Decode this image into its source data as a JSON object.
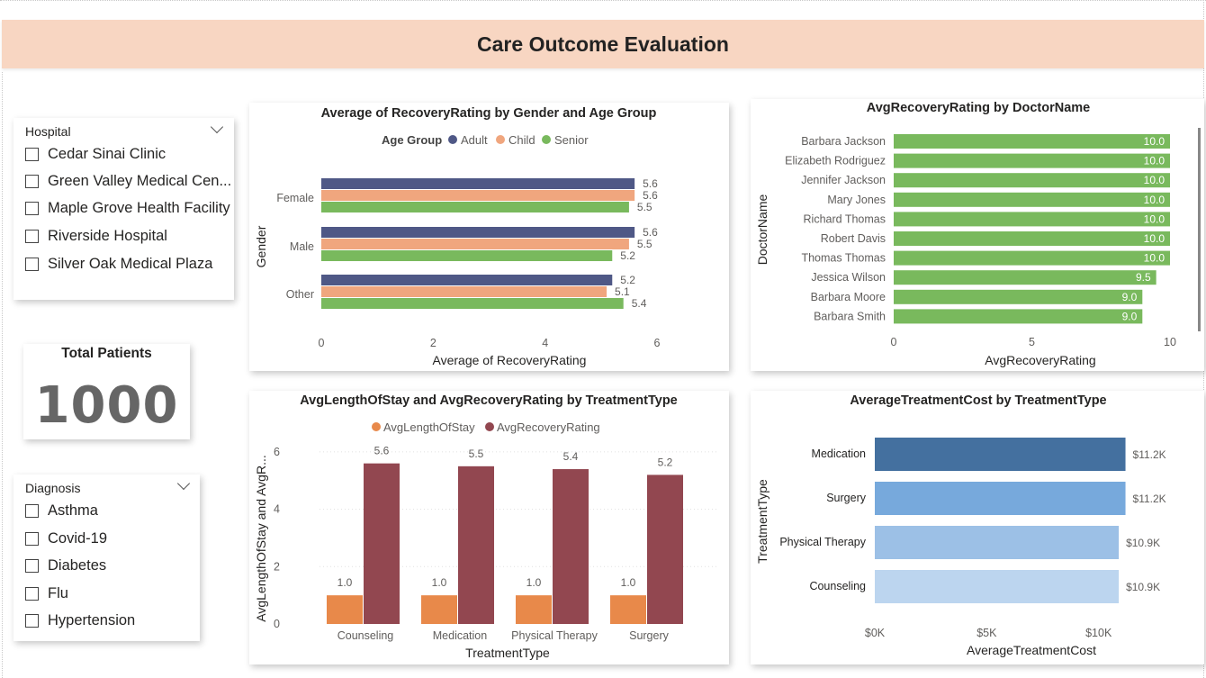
{
  "report": {
    "title": "Care Outcome Evaluation"
  },
  "slicers": {
    "hospital": {
      "label": "Hospital",
      "items": [
        "Cedar Sinai Clinic",
        "Green Valley Medical Cen...",
        "Maple Grove Health Facility",
        "Riverside Hospital",
        "Silver Oak Medical Plaza"
      ]
    },
    "diagnosis": {
      "label": "Diagnosis",
      "items": [
        "Asthma",
        "Covid-19",
        "Diabetes",
        "Flu",
        "Hypertension"
      ]
    }
  },
  "kpi": {
    "label": "Total Patients",
    "value": "1000"
  },
  "colors": {
    "adult": "#4f5886",
    "child": "#f0a67e",
    "senior": "#79b95d",
    "doctor_bar": "#79b95d",
    "length_of_stay": "#e8894a",
    "recovery": "#924750",
    "cost_medication": "#44709f",
    "cost_surgery": "#77a9dc",
    "cost_physical_therapy": "#9cc0e6",
    "cost_counseling": "#bcd5ef"
  },
  "chart_data": [
    {
      "id": "gender_age",
      "type": "bar",
      "orientation": "horizontal",
      "title": "Average of RecoveryRating by Gender and Age Group",
      "xlabel": "Average of RecoveryRating",
      "ylabel": "Gender",
      "legend_title": "Age Group",
      "legend_position": "top",
      "categories": [
        "Female",
        "Male",
        "Other"
      ],
      "series": [
        {
          "name": "Adult",
          "values": [
            5.6,
            5.6,
            5.2
          ],
          "labels": [
            "5.6",
            "5.6",
            "5.2"
          ]
        },
        {
          "name": "Child",
          "values": [
            5.6,
            5.5,
            5.1
          ],
          "labels": [
            "5.6",
            "5.5",
            "5.1"
          ]
        },
        {
          "name": "Senior",
          "values": [
            5.5,
            5.2,
            5.4
          ],
          "labels": [
            "5.5",
            "5.2",
            "5.4"
          ]
        }
      ],
      "xlim": [
        0,
        6
      ],
      "xticks": [
        "0",
        "2",
        "4",
        "6"
      ]
    },
    {
      "id": "doctor",
      "type": "bar",
      "orientation": "horizontal",
      "title": "AvgRecoveryRating by DoctorName",
      "xlabel": "AvgRecoveryRating",
      "ylabel": "DoctorName",
      "categories": [
        "Barbara Jackson",
        "Elizabeth Rodriguez",
        "Jennifer Jackson",
        "Mary Jones",
        "Richard Thomas",
        "Robert Davis",
        "Thomas Thomas",
        "Jessica Wilson",
        "Barbara Moore",
        "Barbara Smith"
      ],
      "values": [
        10.0,
        10.0,
        10.0,
        10.0,
        10.0,
        10.0,
        10.0,
        9.5,
        9.0,
        9.0
      ],
      "labels": [
        "10.0",
        "10.0",
        "10.0",
        "10.0",
        "10.0",
        "10.0",
        "10.0",
        "9.5",
        "9.0",
        "9.0"
      ],
      "xlim": [
        0,
        10
      ],
      "xticks": [
        "0",
        "5",
        "10"
      ]
    },
    {
      "id": "treatment_los",
      "type": "bar",
      "orientation": "vertical",
      "title": "AvgLengthOfStay and AvgRecoveryRating by TreatmentType",
      "xlabel": "TreatmentType",
      "ylabel": "AvgLengthOfStay and AvgR...",
      "legend_position": "top",
      "categories": [
        "Counseling",
        "Medication",
        "Physical Therapy",
        "Surgery"
      ],
      "series": [
        {
          "name": "AvgLengthOfStay",
          "values": [
            1.0,
            1.0,
            1.0,
            1.0
          ],
          "labels": [
            "1.0",
            "1.0",
            "1.0",
            "1.0"
          ]
        },
        {
          "name": "AvgRecoveryRating",
          "values": [
            5.6,
            5.5,
            5.4,
            5.2
          ],
          "labels": [
            "5.6",
            "5.5",
            "5.4",
            "5.2"
          ]
        }
      ],
      "ylim": [
        0,
        6.5
      ],
      "yticks": [
        "0",
        "2",
        "4",
        "6"
      ],
      "grid": true
    },
    {
      "id": "cost",
      "type": "bar",
      "orientation": "horizontal",
      "title": "AverageTreatmentCost by TreatmentType",
      "xlabel": "AverageTreatmentCost",
      "ylabel": "TreatmentType",
      "categories": [
        "Medication",
        "Surgery",
        "Physical Therapy",
        "Counseling"
      ],
      "values": [
        11200,
        11200,
        10900,
        10900
      ],
      "labels": [
        "$11.2K",
        "$11.2K",
        "$10.9K",
        "$10.9K"
      ],
      "xlim": [
        0,
        12000
      ],
      "xticks": [
        "$0K",
        "$5K",
        "$10K"
      ]
    }
  ]
}
